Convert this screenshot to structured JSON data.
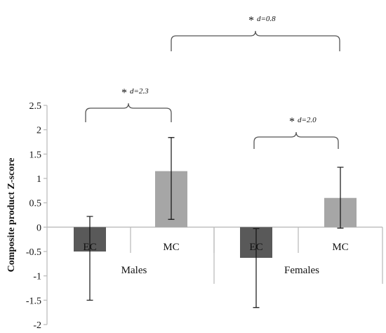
{
  "chart_data": {
    "type": "bar",
    "ylabel": "Composite product Z-score",
    "ylim": [
      -2,
      2.5
    ],
    "yticks": [
      "2.5",
      "2",
      "1.5",
      "1",
      "0.5",
      "0",
      "-0.5",
      "-1",
      "-1.5",
      "-2"
    ],
    "groups": [
      "Males",
      "Females"
    ],
    "categories": [
      "EC",
      "MC",
      "EC",
      "MC"
    ],
    "values": [
      -0.5,
      1.15,
      -0.63,
      0.6
    ],
    "error_upper": [
      0.22,
      1.84,
      -0.03,
      1.23
    ],
    "error_lower": [
      -1.5,
      0.16,
      -1.65,
      -0.02
    ],
    "colors": {
      "EC": "#595959",
      "MC": "#a6a6a6"
    },
    "annotations": [
      {
        "star": "*",
        "effect": "d=2.3"
      },
      {
        "star": "*",
        "effect": "d=2.0"
      },
      {
        "star": "*",
        "effect": "d=0.8"
      }
    ],
    "grid": false,
    "legend": "none"
  }
}
